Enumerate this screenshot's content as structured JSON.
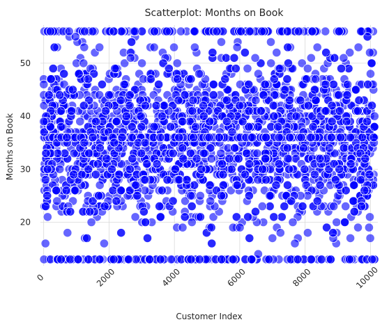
{
  "chart_data": {
    "type": "scatter",
    "title": "Scatterplot: Months on Book",
    "xlabel": "Customer Index",
    "ylabel": "Months on Book",
    "xlim": [
      -100,
      10226
    ],
    "ylim": [
      11.8,
      57.2
    ],
    "xticks": [
      "0",
      "2000",
      "4000",
      "6000",
      "8000",
      "10000"
    ],
    "yticks": [
      "20",
      "30",
      "40",
      "50"
    ],
    "grid": true,
    "point_color": "#0000ff",
    "point_alpha": 0.6,
    "point_edge_color": "#ffffff",
    "n_points": 10127,
    "points_summary": "Months on book ranges 13-56 across all 10127 customers; dense band concentrated at 36 months",
    "sample_points": [
      {
        "x": 0,
        "y": 39
      },
      {
        "x": 120,
        "y": 21
      },
      {
        "x": 210,
        "y": 56
      },
      {
        "x": 530,
        "y": 13
      },
      {
        "x": 780,
        "y": 56
      },
      {
        "x": 1050,
        "y": 13
      },
      {
        "x": 1500,
        "y": 36
      },
      {
        "x": 2000,
        "y": 44
      },
      {
        "x": 2600,
        "y": 13
      },
      {
        "x": 3100,
        "y": 28
      },
      {
        "x": 3900,
        "y": 13
      },
      {
        "x": 4200,
        "y": 56
      },
      {
        "x": 5100,
        "y": 24
      },
      {
        "x": 5800,
        "y": 13
      },
      {
        "x": 6300,
        "y": 56
      },
      {
        "x": 7000,
        "y": 17
      },
      {
        "x": 7800,
        "y": 56
      },
      {
        "x": 8500,
        "y": 13
      },
      {
        "x": 9300,
        "y": 46
      },
      {
        "x": 10050,
        "y": 13
      },
      {
        "x": 10100,
        "y": 36
      },
      {
        "x": 10126,
        "y": 40
      }
    ]
  }
}
